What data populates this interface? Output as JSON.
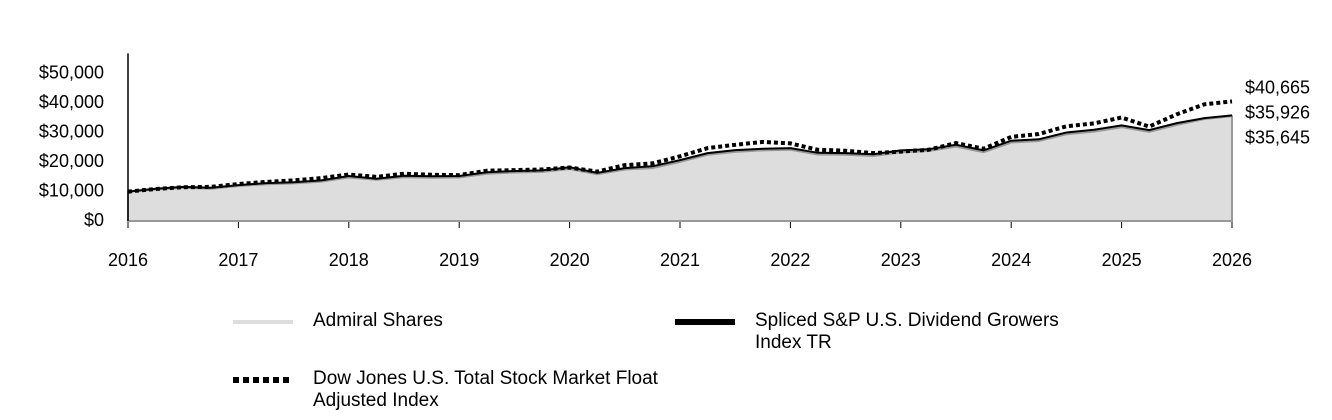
{
  "chart_data": {
    "type": "area-line",
    "x": [
      2016,
      2016.25,
      2016.5,
      2016.75,
      2017,
      2017.25,
      2017.5,
      2017.75,
      2018,
      2018.25,
      2018.5,
      2018.75,
      2019,
      2019.25,
      2019.5,
      2019.75,
      2020,
      2020.25,
      2020.5,
      2020.75,
      2021,
      2021.25,
      2021.5,
      2021.75,
      2022,
      2022.25,
      2022.5,
      2022.75,
      2023,
      2023.25,
      2023.5,
      2023.75,
      2024,
      2024.25,
      2024.5,
      2024.75,
      2025,
      2025.25,
      2025.5,
      2025.75,
      2026
    ],
    "xlim": [
      2016,
      2026
    ],
    "xticks": [
      2016,
      2017,
      2018,
      2019,
      2020,
      2021,
      2022,
      2023,
      2024,
      2025,
      2026
    ],
    "ylim": [
      0,
      57000
    ],
    "yticks": [
      {
        "value": 0,
        "label": "$0"
      },
      {
        "value": 10000,
        "label": "$10,000"
      },
      {
        "value": 20000,
        "label": "$20,000"
      },
      {
        "value": 30000,
        "label": "$30,000"
      },
      {
        "value": 40000,
        "label": "$40,000"
      },
      {
        "value": 50000,
        "label": "$50,000"
      }
    ],
    "series": [
      {
        "name": "Admiral Shares",
        "color": "#dddddd",
        "style": "area",
        "values": [
          10000,
          10700,
          11300,
          11000,
          11900,
          12500,
          12800,
          13400,
          14800,
          14000,
          14900,
          14700,
          14800,
          16100,
          16500,
          16700,
          17700,
          15900,
          17500,
          18000,
          20100,
          22500,
          23500,
          24000,
          24200,
          22600,
          22500,
          22100,
          23400,
          23800,
          25300,
          23400,
          26700,
          27200,
          29500,
          30400,
          31900,
          30300,
          32700,
          34700,
          35645
        ],
        "value_labels": [
          null,
          null,
          null,
          null,
          null,
          null,
          null,
          null,
          null,
          null,
          null,
          null,
          null,
          null,
          null,
          null,
          null,
          null,
          null,
          null,
          null,
          null,
          null,
          null,
          null,
          null,
          null,
          null,
          null,
          null,
          null,
          null,
          null,
          null,
          null,
          null,
          null,
          null,
          null,
          null,
          "$35,645"
        ]
      },
      {
        "name": "Spliced S&P U.S. Dividend Growers Index TR",
        "color": "#000000",
        "style": "solid",
        "values": [
          10000,
          11000,
          11600,
          11300,
          12200,
          12900,
          13200,
          13800,
          15300,
          14400,
          15400,
          15200,
          15300,
          16600,
          17000,
          17200,
          18300,
          16400,
          18000,
          18600,
          20700,
          23100,
          24100,
          24600,
          24800,
          23200,
          23100,
          22700,
          24000,
          24400,
          25900,
          24000,
          27300,
          27800,
          30100,
          31000,
          32500,
          30900,
          33300,
          35000,
          35926
        ],
        "value_labels": [
          null,
          null,
          null,
          null,
          null,
          null,
          null,
          null,
          null,
          null,
          null,
          null,
          null,
          null,
          null,
          null,
          null,
          null,
          null,
          null,
          null,
          null,
          null,
          null,
          null,
          null,
          null,
          null,
          null,
          null,
          null,
          null,
          null,
          null,
          null,
          null,
          null,
          null,
          null,
          null,
          "$35,926"
        ]
      },
      {
        "name": "Dow Jones U.S. Total Stock Market Float Adjusted Index",
        "color": "#000000",
        "style": "dotted",
        "values": [
          10000,
          10900,
          11500,
          11600,
          12600,
          13300,
          13800,
          14600,
          15800,
          15000,
          16100,
          15700,
          15600,
          17100,
          17300,
          17500,
          18200,
          16800,
          19000,
          19600,
          22000,
          24800,
          25900,
          26900,
          26400,
          24200,
          23900,
          23100,
          23600,
          24200,
          26500,
          24600,
          28600,
          29600,
          32200,
          33200,
          35200,
          32100,
          36300,
          39700,
          40665
        ],
        "value_labels": [
          null,
          null,
          null,
          null,
          null,
          null,
          null,
          null,
          null,
          null,
          null,
          null,
          null,
          null,
          null,
          null,
          null,
          null,
          null,
          null,
          null,
          null,
          null,
          null,
          null,
          null,
          null,
          null,
          null,
          null,
          null,
          null,
          null,
          null,
          null,
          null,
          null,
          null,
          null,
          null,
          "$40,665"
        ]
      }
    ]
  }
}
